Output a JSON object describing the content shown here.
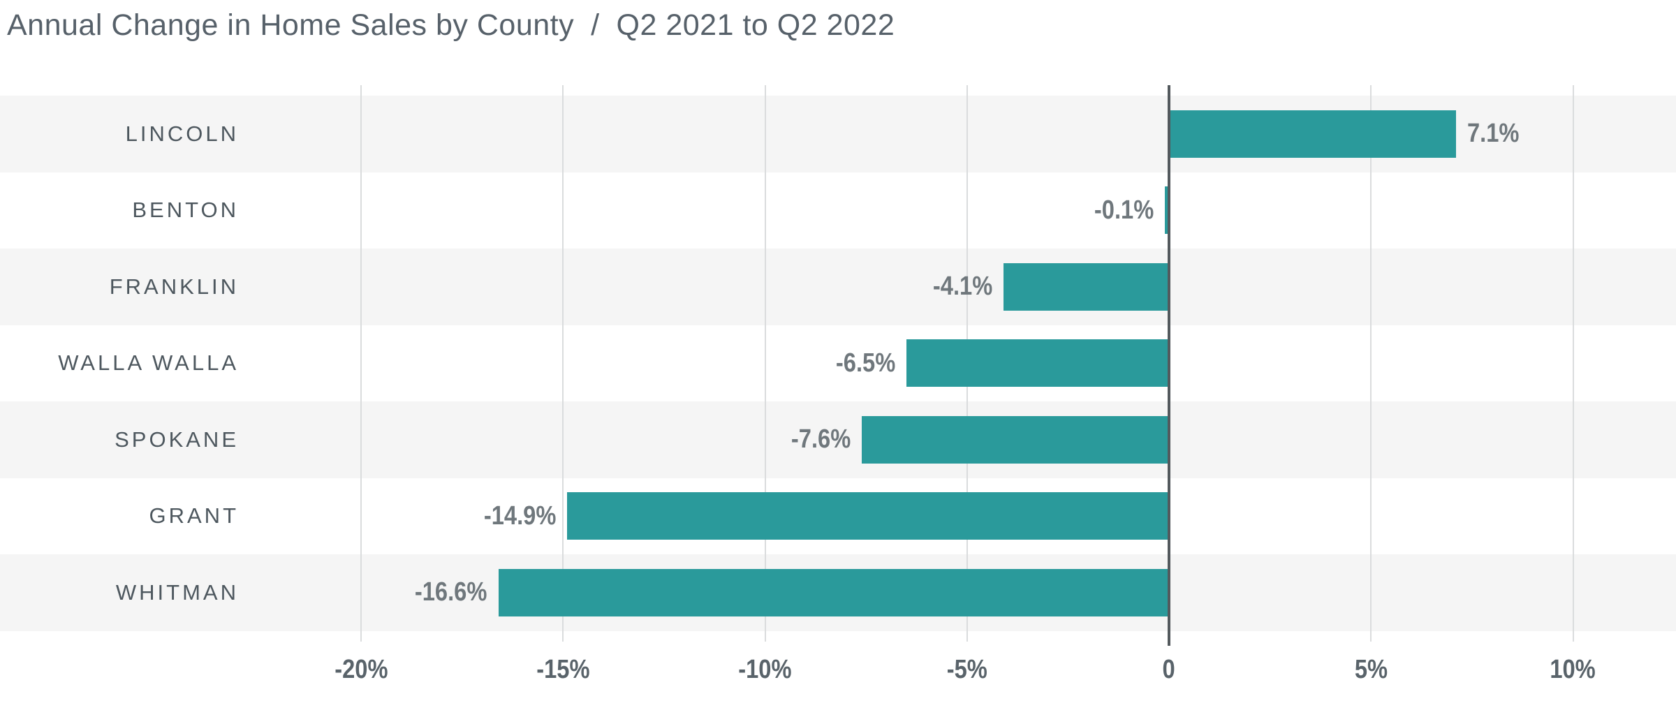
{
  "title": {
    "main": "Annual Change in Home Sales by County",
    "separator": "/",
    "subtitle": "Q2 2021 to Q2 2022"
  },
  "chart_data": {
    "type": "bar",
    "orientation": "horizontal",
    "title": "Annual Change in Home Sales by County / Q2 2021 to Q2 2022",
    "categories": [
      "LINCOLN",
      "BENTON",
      "FRANKLIN",
      "WALLA WALLA",
      "SPOKANE",
      "GRANT",
      "WHITMAN"
    ],
    "values": [
      7.1,
      -0.1,
      -4.1,
      -6.5,
      -7.6,
      -14.9,
      -16.6
    ],
    "value_labels": [
      "7.1%",
      "-0.1%",
      "-4.1%",
      "-6.5%",
      "-7.6%",
      "-14.9%",
      "-16.6%"
    ],
    "x_ticks": [
      -20,
      -15,
      -10,
      -5,
      0,
      5,
      10
    ],
    "x_tick_labels": [
      "-20%",
      "-15%",
      "-10%",
      "-5%",
      "0",
      "5%",
      "10%"
    ],
    "xlim": [
      -28.9,
      12.5
    ],
    "xlabel": "",
    "ylabel": "",
    "grid": "vertical-gridlines",
    "legend": "none",
    "row_striping": "alternating",
    "colors": {
      "bar": "#2A9A9B",
      "row_stripe": "#F5F5F5",
      "gridline": "#DADCDD",
      "zero_line": "#53595D",
      "title_text": "#57616A",
      "category_text": "#4D575E",
      "value_text": "#6F777C",
      "tick_text": "#59636A",
      "background": "#FFFFFF"
    }
  }
}
